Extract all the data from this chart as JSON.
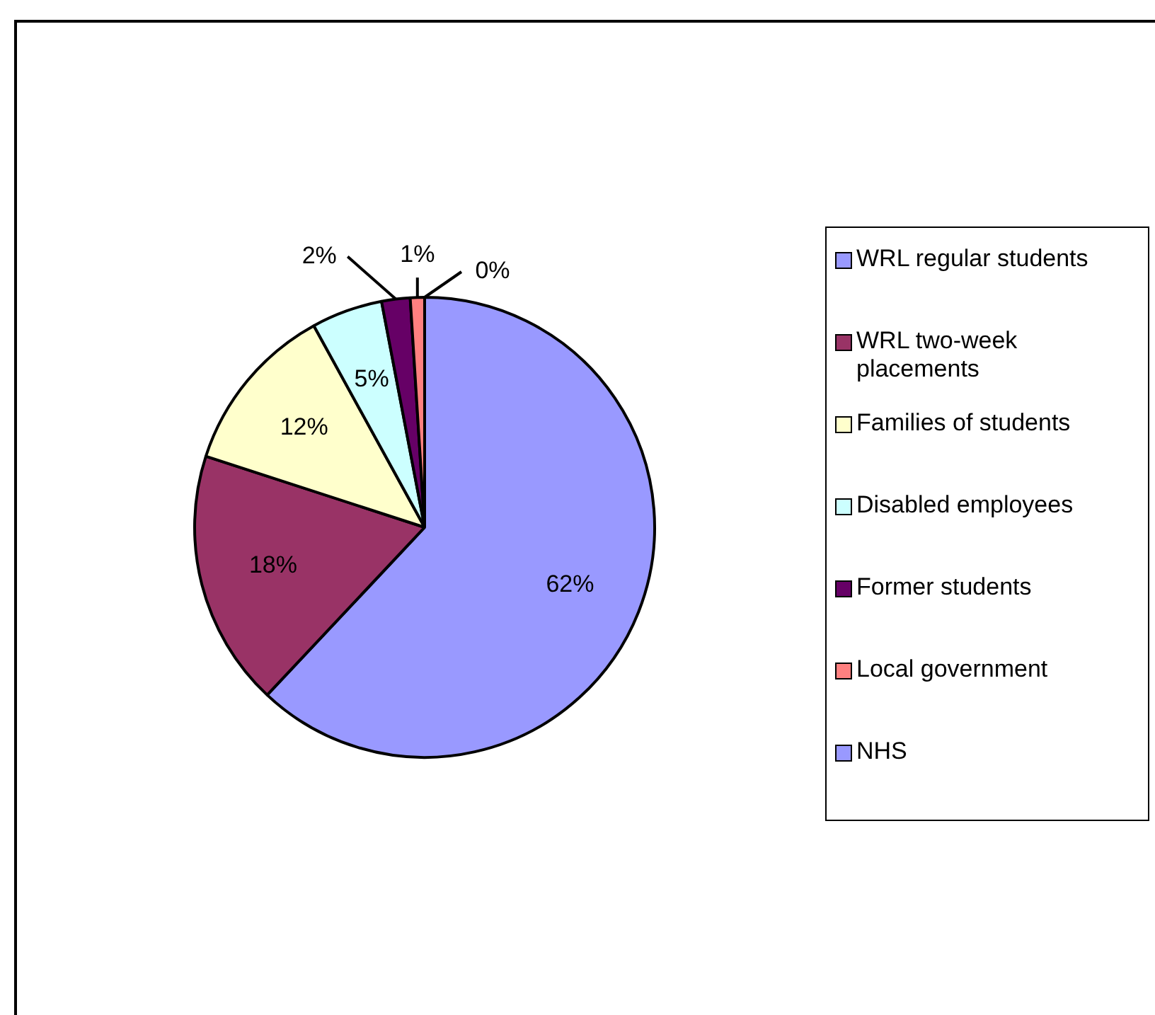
{
  "chart_data": {
    "type": "pie",
    "categories": [
      "WRL regular students",
      "WRL two-week placements",
      "Families of students",
      "Disabled employees",
      "Former students",
      "Local government",
      "NHS"
    ],
    "values": [
      62,
      18,
      12,
      5,
      2,
      1,
      0
    ],
    "colors": [
      "#9999ff",
      "#993366",
      "#ffffcc",
      "#ccffff",
      "#660066",
      "#ff8080",
      "#9999ff"
    ],
    "value_labels": [
      "62%",
      "18%",
      "12%",
      "5%",
      "2%",
      "1%",
      "0%"
    ],
    "legend": "right"
  }
}
